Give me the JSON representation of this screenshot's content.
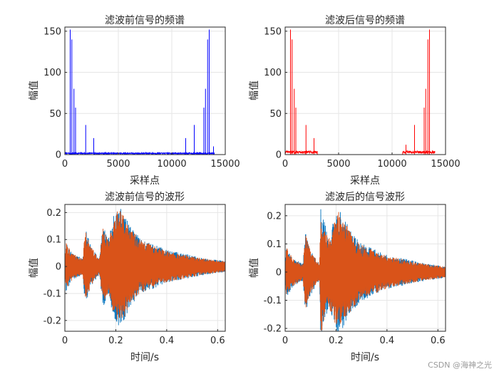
{
  "watermark": "CSDN @海神之光",
  "chart_data": [
    {
      "type": "line",
      "title": "滤波前信号的频谱",
      "xlabel": "采样点",
      "ylabel": "幅值",
      "xlim": [
        0,
        15000
      ],
      "ylim": [
        0,
        155
      ],
      "xticks": [
        0,
        5000,
        10000,
        15000
      ],
      "yticks": [
        0,
        50,
        100,
        150
      ],
      "grid": true,
      "series_color": "#0000ff",
      "noise_floor": 1.5,
      "x_max": 14000,
      "peaks": [
        {
          "x": 500,
          "y": 152
        },
        {
          "x": 650,
          "y": 140
        },
        {
          "x": 850,
          "y": 80
        },
        {
          "x": 1000,
          "y": 57
        },
        {
          "x": 1950,
          "y": 36
        },
        {
          "x": 2700,
          "y": 20
        },
        {
          "x": 11300,
          "y": 20
        },
        {
          "x": 12100,
          "y": 36
        },
        {
          "x": 13000,
          "y": 57
        },
        {
          "x": 13150,
          "y": 80
        },
        {
          "x": 13350,
          "y": 140
        },
        {
          "x": 13500,
          "y": 152
        },
        {
          "x": 13900,
          "y": 10
        }
      ]
    },
    {
      "type": "line",
      "title": "滤波后信号的频谱",
      "xlabel": "采样点",
      "ylabel": "幅值",
      "xlim": [
        0,
        15000
      ],
      "ylim": [
        0,
        155
      ],
      "xticks": [
        0,
        5000,
        10000,
        15000
      ],
      "yticks": [
        0,
        50,
        100,
        150
      ],
      "grid": true,
      "series_color": "#ff0000",
      "noise_floor": 3,
      "x_max": 14000,
      "passband": [
        [
          0,
          3000
        ],
        [
          11000,
          14000
        ]
      ],
      "peaks": [
        {
          "x": 500,
          "y": 152
        },
        {
          "x": 650,
          "y": 140
        },
        {
          "x": 850,
          "y": 80
        },
        {
          "x": 1000,
          "y": 57
        },
        {
          "x": 1950,
          "y": 36
        },
        {
          "x": 2700,
          "y": 20
        },
        {
          "x": 11300,
          "y": 12
        },
        {
          "x": 12100,
          "y": 36
        },
        {
          "x": 13000,
          "y": 57
        },
        {
          "x": 13150,
          "y": 80
        },
        {
          "x": 13350,
          "y": 140
        },
        {
          "x": 13500,
          "y": 152
        }
      ]
    },
    {
      "type": "line",
      "title": "滤波前信号的波形",
      "xlabel": "时间/s",
      "ylabel": "幅值",
      "xlim": [
        0,
        0.63
      ],
      "ylim": [
        -0.24,
        0.23
      ],
      "xticks": [
        0,
        0.2,
        0.4,
        0.6
      ],
      "yticks": [
        -0.2,
        -0.1,
        0,
        0.1,
        0.2
      ],
      "grid": true,
      "series": [
        {
          "color": "#0072bd"
        },
        {
          "color": "#d95319"
        }
      ],
      "envelope": [
        [
          0.0,
          0.02
        ],
        [
          0.005,
          0.09
        ],
        [
          0.03,
          0.05
        ],
        [
          0.07,
          0.03
        ],
        [
          0.08,
          0.14
        ],
        [
          0.1,
          0.08
        ],
        [
          0.12,
          0.05
        ],
        [
          0.135,
          0.03
        ],
        [
          0.15,
          0.15
        ],
        [
          0.17,
          0.1
        ],
        [
          0.19,
          0.18
        ],
        [
          0.21,
          0.22
        ],
        [
          0.23,
          0.2
        ],
        [
          0.26,
          0.14
        ],
        [
          0.3,
          0.1
        ],
        [
          0.35,
          0.08
        ],
        [
          0.4,
          0.06
        ],
        [
          0.45,
          0.05
        ],
        [
          0.5,
          0.04
        ],
        [
          0.55,
          0.03
        ],
        [
          0.63,
          0.02
        ]
      ]
    },
    {
      "type": "line",
      "title": "滤波后的信号波形",
      "xlabel": "时间/s",
      "ylabel": "幅值",
      "xlim": [
        0,
        0.63
      ],
      "ylim": [
        -0.21,
        0.24
      ],
      "xticks": [
        0,
        0.2,
        0.4,
        0.6
      ],
      "yticks": [
        -0.2,
        -0.1,
        0,
        0.1,
        0.2
      ],
      "grid": true,
      "series": [
        {
          "color": "#0072bd"
        },
        {
          "color": "#d95319"
        }
      ],
      "envelope": [
        [
          0.0,
          0.02
        ],
        [
          0.005,
          0.09
        ],
        [
          0.03,
          0.05
        ],
        [
          0.07,
          0.03
        ],
        [
          0.08,
          0.14
        ],
        [
          0.1,
          0.08
        ],
        [
          0.12,
          0.05
        ],
        [
          0.135,
          0.03
        ],
        [
          0.14,
          0.23
        ],
        [
          0.17,
          0.12
        ],
        [
          0.19,
          0.18
        ],
        [
          0.21,
          0.22
        ],
        [
          0.23,
          0.19
        ],
        [
          0.26,
          0.14
        ],
        [
          0.3,
          0.1
        ],
        [
          0.35,
          0.08
        ],
        [
          0.4,
          0.06
        ],
        [
          0.45,
          0.05
        ],
        [
          0.5,
          0.04
        ],
        [
          0.55,
          0.03
        ],
        [
          0.63,
          0.02
        ]
      ]
    }
  ]
}
